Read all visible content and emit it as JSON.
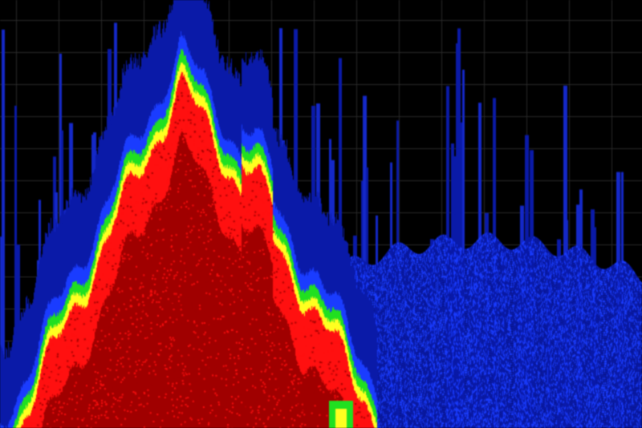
{
  "display": {
    "type": "spectrum-persistence",
    "grid": true,
    "colors": {
      "background": "#000000",
      "grid": "#2a2a2a",
      "low_density": "#0a1aa8",
      "mid_low": "#1a3cff",
      "mid": "#20e020",
      "mid_high": "#ffff20",
      "high": "#ff1010",
      "peak": "#a00000"
    }
  }
}
